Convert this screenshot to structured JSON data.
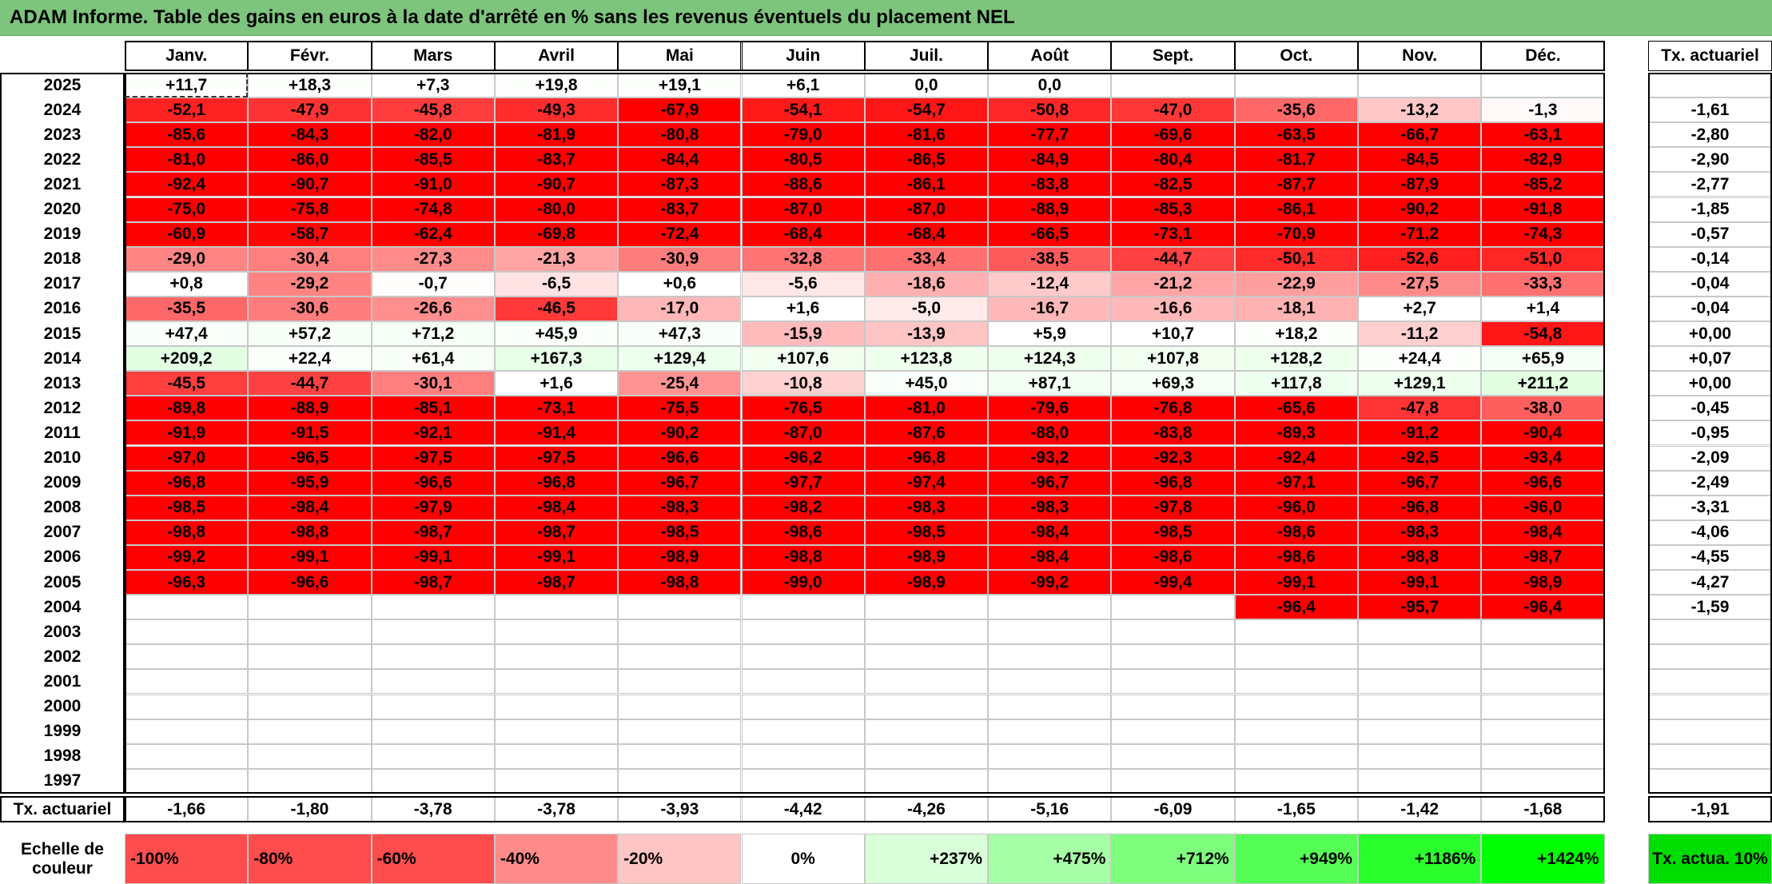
{
  "title": "ADAM Informe. Table des gains en euros à la date d'arrêté en % sans les revenus éventuels du placement NEL",
  "chart_data": {
    "type": "heatmap",
    "title": "ADAM Informe. Table des gains en euros à la date d'arrêté en % sans les revenus éventuels du placement NEL",
    "months": [
      "Janv.",
      "Févr.",
      "Mars",
      "Avril",
      "Mai",
      "Juin",
      "Juil.",
      "Août",
      "Sept.",
      "Oct.",
      "Nov.",
      "Déc."
    ],
    "annual_header": "Tx. actuariel",
    "rows": [
      {
        "year": "2025",
        "values": [
          "+11,7",
          "+18,3",
          "+7,3",
          "+19,8",
          "+19,1",
          "+6,1",
          "0,0",
          "0,0",
          "",
          "",
          "",
          ""
        ],
        "rate": ""
      },
      {
        "year": "2024",
        "values": [
          "-52,1",
          "-47,9",
          "-45,8",
          "-49,3",
          "-67,9",
          "-54,1",
          "-54,7",
          "-50,8",
          "-47,0",
          "-35,6",
          "-13,2",
          "-1,3"
        ],
        "rate": "-1,61"
      },
      {
        "year": "2023",
        "values": [
          "-85,6",
          "-84,3",
          "-82,0",
          "-81,9",
          "-80,8",
          "-79,0",
          "-81,6",
          "-77,7",
          "-69,6",
          "-63,5",
          "-66,7",
          "-63,1"
        ],
        "rate": "-2,80"
      },
      {
        "year": "2022",
        "values": [
          "-81,0",
          "-86,0",
          "-85,5",
          "-83,7",
          "-84,4",
          "-80,5",
          "-86,5",
          "-84,9",
          "-80,4",
          "-81,7",
          "-84,5",
          "-82,9"
        ],
        "rate": "-2,90"
      },
      {
        "year": "2021",
        "values": [
          "-92,4",
          "-90,7",
          "-91,0",
          "-90,7",
          "-87,3",
          "-88,6",
          "-86,1",
          "-83,8",
          "-82,5",
          "-87,7",
          "-87,9",
          "-85,2"
        ],
        "rate": "-2,77"
      },
      {
        "year": "2020",
        "values": [
          "-75,0",
          "-75,8",
          "-74,8",
          "-80,0",
          "-83,7",
          "-87,0",
          "-87,0",
          "-88,9",
          "-85,3",
          "-86,1",
          "-90,2",
          "-91,8"
        ],
        "rate": "-1,85"
      },
      {
        "year": "2019",
        "values": [
          "-60,9",
          "-58,7",
          "-62,4",
          "-69,8",
          "-72,4",
          "-68,4",
          "-68,4",
          "-66,5",
          "-73,1",
          "-70,9",
          "-71,2",
          "-74,3"
        ],
        "rate": "-0,57"
      },
      {
        "year": "2018",
        "values": [
          "-29,0",
          "-30,4",
          "-27,3",
          "-21,3",
          "-30,9",
          "-32,8",
          "-33,4",
          "-38,5",
          "-44,7",
          "-50,1",
          "-52,6",
          "-51,0"
        ],
        "rate": "-0,14"
      },
      {
        "year": "2017",
        "values": [
          "+0,8",
          "-29,2",
          "-0,7",
          "-6,5",
          "+0,6",
          "-5,6",
          "-18,6",
          "-12,4",
          "-21,2",
          "-22,9",
          "-27,5",
          "-33,3"
        ],
        "rate": "-0,04"
      },
      {
        "year": "2016",
        "values": [
          "-35,5",
          "-30,6",
          "-26,6",
          "-46,5",
          "-17,0",
          "+1,6",
          "-5,0",
          "-16,7",
          "-16,6",
          "-18,1",
          "+2,7",
          "+1,4"
        ],
        "rate": "-0,04"
      },
      {
        "year": "2015",
        "values": [
          "+47,4",
          "+57,2",
          "+71,2",
          "+45,9",
          "+47,3",
          "-15,9",
          "-13,9",
          "+5,9",
          "+10,7",
          "+18,2",
          "-11,2",
          "-54,8"
        ],
        "rate": "+0,00"
      },
      {
        "year": "2014",
        "values": [
          "+209,2",
          "+22,4",
          "+61,4",
          "+167,3",
          "+129,4",
          "+107,6",
          "+123,8",
          "+124,3",
          "+107,8",
          "+128,2",
          "+24,4",
          "+65,9"
        ],
        "rate": "+0,07"
      },
      {
        "year": "2013",
        "values": [
          "-45,5",
          "-44,7",
          "-30,1",
          "+1,6",
          "-25,4",
          "-10,8",
          "+45,0",
          "+87,1",
          "+69,3",
          "+117,8",
          "+129,1",
          "+211,2"
        ],
        "rate": "+0,00"
      },
      {
        "year": "2012",
        "values": [
          "-89,8",
          "-88,9",
          "-85,1",
          "-73,1",
          "-75,5",
          "-76,5",
          "-81,0",
          "-79,6",
          "-76,8",
          "-65,6",
          "-47,8",
          "-38,0"
        ],
        "rate": "-0,45"
      },
      {
        "year": "2011",
        "values": [
          "-91,9",
          "-91,5",
          "-92,1",
          "-91,4",
          "-90,2",
          "-87,0",
          "-87,6",
          "-88,0",
          "-83,8",
          "-89,3",
          "-91,2",
          "-90,4"
        ],
        "rate": "-0,95"
      },
      {
        "year": "2010",
        "values": [
          "-97,0",
          "-96,5",
          "-97,5",
          "-97,5",
          "-96,6",
          "-96,2",
          "-96,8",
          "-93,2",
          "-92,3",
          "-92,4",
          "-92,5",
          "-93,4"
        ],
        "rate": "-2,09"
      },
      {
        "year": "2009",
        "values": [
          "-96,8",
          "-95,9",
          "-96,6",
          "-96,8",
          "-96,7",
          "-97,7",
          "-97,4",
          "-96,7",
          "-96,8",
          "-97,1",
          "-96,7",
          "-96,6"
        ],
        "rate": "-2,49"
      },
      {
        "year": "2008",
        "values": [
          "-98,5",
          "-98,4",
          "-97,9",
          "-98,4",
          "-98,3",
          "-98,2",
          "-98,3",
          "-98,3",
          "-97,8",
          "-96,0",
          "-96,8",
          "-96,0"
        ],
        "rate": "-3,31"
      },
      {
        "year": "2007",
        "values": [
          "-98,8",
          "-98,8",
          "-98,7",
          "-98,7",
          "-98,5",
          "-98,6",
          "-98,5",
          "-98,4",
          "-98,5",
          "-98,6",
          "-98,3",
          "-98,4"
        ],
        "rate": "-4,06"
      },
      {
        "year": "2006",
        "values": [
          "-99,2",
          "-99,1",
          "-99,1",
          "-99,1",
          "-98,9",
          "-98,8",
          "-98,9",
          "-98,4",
          "-98,6",
          "-98,6",
          "-98,8",
          "-98,7"
        ],
        "rate": "-4,55"
      },
      {
        "year": "2005",
        "values": [
          "-96,3",
          "-96,6",
          "-98,7",
          "-98,7",
          "-98,8",
          "-99,0",
          "-98,9",
          "-99,2",
          "-99,4",
          "-99,1",
          "-99,1",
          "-98,9"
        ],
        "rate": "-4,27"
      },
      {
        "year": "2004",
        "values": [
          "",
          "",
          "",
          "",
          "",
          "",
          "",
          "",
          "",
          "-96,4",
          "-95,7",
          "-96,4"
        ],
        "rate": "-1,59"
      },
      {
        "year": "2003",
        "values": [
          "",
          "",
          "",
          "",
          "",
          "",
          "",
          "",
          "",
          "",
          "",
          ""
        ],
        "rate": ""
      },
      {
        "year": "2002",
        "values": [
          "",
          "",
          "",
          "",
          "",
          "",
          "",
          "",
          "",
          "",
          "",
          ""
        ],
        "rate": ""
      },
      {
        "year": "2001",
        "values": [
          "",
          "",
          "",
          "",
          "",
          "",
          "",
          "",
          "",
          "",
          "",
          ""
        ],
        "rate": ""
      },
      {
        "year": "2000",
        "values": [
          "",
          "",
          "",
          "",
          "",
          "",
          "",
          "",
          "",
          "",
          "",
          ""
        ],
        "rate": ""
      },
      {
        "year": "1999",
        "values": [
          "",
          "",
          "",
          "",
          "",
          "",
          "",
          "",
          "",
          "",
          "",
          ""
        ],
        "rate": ""
      },
      {
        "year": "1998",
        "values": [
          "",
          "",
          "",
          "",
          "",
          "",
          "",
          "",
          "",
          "",
          "",
          ""
        ],
        "rate": ""
      },
      {
        "year": "1997",
        "values": [
          "",
          "",
          "",
          "",
          "",
          "",
          "",
          "",
          "",
          "",
          "",
          ""
        ],
        "rate": ""
      }
    ],
    "footer": {
      "label": "Tx. actuariel",
      "values": [
        "-1,66",
        "-1,80",
        "-3,78",
        "-3,78",
        "-3,93",
        "-4,42",
        "-4,26",
        "-5,16",
        "-6,09",
        "-1,65",
        "-1,42",
        "-1,68"
      ],
      "rate": "-1,91"
    },
    "color_scale": {
      "label": "Echelle de couleur",
      "steps": [
        {
          "label": "-100%",
          "color": "#ff4d4d"
        },
        {
          "label": "-80%",
          "color": "#ff4d4d"
        },
        {
          "label": "-60%",
          "color": "#ff4d4d"
        },
        {
          "label": "-40%",
          "color": "#ff8a8a"
        },
        {
          "label": "-20%",
          "color": "#ffc4c4"
        },
        {
          "label": "0%",
          "color": "#ffffff"
        },
        {
          "label": "+237%",
          "color": "#d9ffd9"
        },
        {
          "label": "+475%",
          "color": "#a6ffa6"
        },
        {
          "label": "+712%",
          "color": "#7dff7d"
        },
        {
          "label": "+949%",
          "color": "#55ff55"
        },
        {
          "label": "+1186%",
          "color": "#2bff2b"
        },
        {
          "label": "+1424%",
          "color": "#00ff00"
        }
      ],
      "rate_label": "Tx. actua. 10%",
      "rate_color": "#00dd00"
    },
    "colors": {
      "negative_max": "#ff0000",
      "neutral": "#ffffff",
      "positive": "#ddffdd",
      "title_bar": "#7dc47d"
    }
  }
}
